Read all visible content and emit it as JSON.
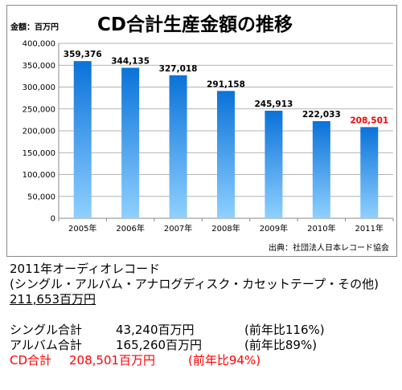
{
  "chart_data": {
    "type": "bar",
    "title": "CD合計生産金額の推移",
    "unit_label": "金額：百万円",
    "source": "出典：社団法人日本レコード協会",
    "categories": [
      "2005年",
      "2006年",
      "2007年",
      "2008年",
      "2009年",
      "2010年",
      "2011年"
    ],
    "values": [
      359376,
      344135,
      327018,
      291158,
      245913,
      222033,
      208501
    ],
    "value_labels": [
      "359,376",
      "344,135",
      "327,018",
      "291,158",
      "245,913",
      "222,033",
      "208,501"
    ],
    "highlight_index": 6,
    "highlight_label_color": "#ff0000",
    "bar_color_top": "#0a72d9",
    "bar_color_bottom": "#8fd0ff",
    "ylim": [
      0,
      400000
    ],
    "yticks": [
      0,
      50000,
      100000,
      150000,
      200000,
      250000,
      300000,
      350000,
      400000
    ],
    "ytick_labels": [
      "0",
      "50,000",
      "100,000",
      "150,000",
      "200,000",
      "250,000",
      "300,000",
      "350,000",
      "400,000"
    ],
    "grid": true,
    "xlabel": "",
    "ylabel": ""
  },
  "notes": {
    "heading": "2011年オーディオレコード",
    "subheading": "(シングル・アルバム・アナログディスク・カセットテープ・その他)",
    "total": "211,653百万円",
    "single": {
      "label": "シングル合計",
      "amount": "43,240百万円",
      "ratio": "(前年比116%)"
    },
    "album": {
      "label": "アルバム合計",
      "amount": "165,260百万円",
      "ratio": "(前年比89%)"
    },
    "cd": {
      "label": "CD合計",
      "amount": "208,501百万円",
      "ratio": "(前年比94%)"
    }
  }
}
